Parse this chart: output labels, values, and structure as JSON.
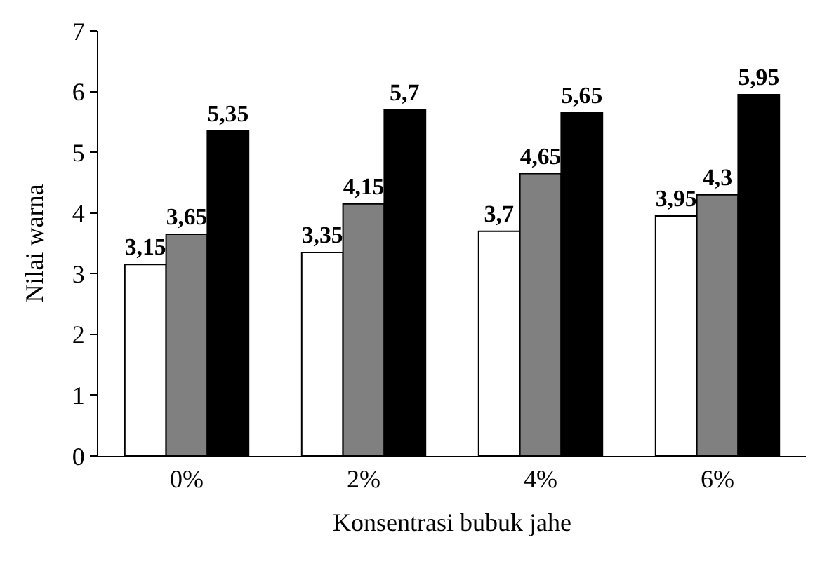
{
  "chart_data": {
    "type": "bar",
    "xlabel": "Konsentrasi bubuk jahe",
    "ylabel": "Nilai warna",
    "categories": [
      "0%",
      "2%",
      "4%",
      "6%"
    ],
    "series": [
      {
        "color": "#ffffff",
        "values": [
          3.15,
          3.35,
          3.7,
          3.95
        ],
        "value_labels": [
          "3,15",
          "3,35",
          "3,7",
          "3,95"
        ]
      },
      {
        "color": "#808080",
        "values": [
          3.65,
          4.15,
          4.65,
          4.3
        ],
        "value_labels": [
          "3,65",
          "4,15",
          "4,65",
          "4,3"
        ]
      },
      {
        "color": "#000000",
        "values": [
          5.35,
          5.7,
          5.65,
          5.95
        ],
        "value_labels": [
          "5,35",
          "5,7",
          "5,65",
          "5,95"
        ]
      }
    ],
    "ylim": [
      0,
      7
    ],
    "yticks": [
      0,
      1,
      2,
      3,
      4,
      5,
      6,
      7
    ],
    "legend": false
  }
}
